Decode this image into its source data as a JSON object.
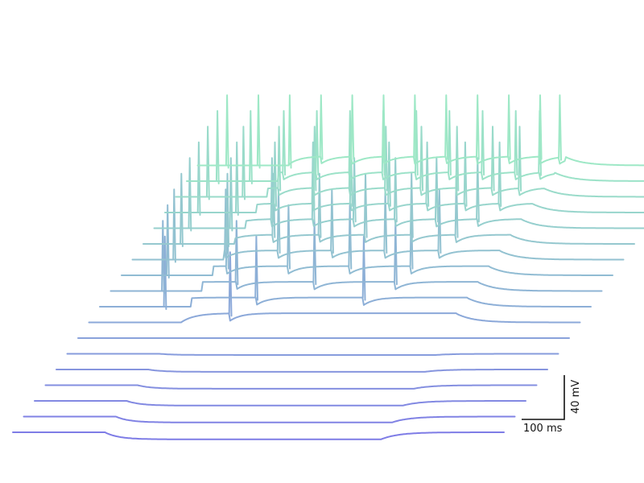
{
  "chart_data": {
    "type": "line",
    "title": "",
    "xlabel": "",
    "ylabel": "",
    "grid": false,
    "legend": "none",
    "colors": {
      "front": "#7e7ce6",
      "back": "#9ee8c6"
    },
    "scale_bar": {
      "time_label": "100 ms",
      "voltage_label": "40 mV"
    },
    "series": [
      {
        "step_mV": -60,
        "spikes_ms": []
      },
      {
        "step_mV": -50,
        "spikes_ms": []
      },
      {
        "step_mV": -40,
        "spikes_ms": []
      },
      {
        "step_mV": -30,
        "spikes_ms": []
      },
      {
        "step_mV": -20,
        "spikes_ms": []
      },
      {
        "step_mV": -10,
        "spikes_ms": []
      },
      {
        "step_mV": 0,
        "spikes_ms": []
      },
      {
        "step_mV": 10,
        "spikes_ms": [
          230
        ]
      },
      {
        "step_mV": 20,
        "spikes_ms": [
          106,
          255,
          430
        ]
      },
      {
        "step_mV": 30,
        "spikes_ms": [
          85,
          205,
          332,
          464
        ]
      },
      {
        "step_mV": 40,
        "spikes_ms": [
          75,
          172,
          272,
          372,
          472
        ]
      },
      {
        "step_mV": 50,
        "spikes_ms": [
          68,
          152,
          238,
          325,
          412,
          500
        ]
      },
      {
        "step_mV": 60,
        "spikes_ms": [
          62,
          137,
          212,
          287,
          362,
          437,
          510
        ]
      },
      {
        "step_mV": 70,
        "spikes_ms": [
          58,
          125,
          192,
          259,
          326,
          393,
          460,
          527
        ]
      },
      {
        "step_mV": 80,
        "spikes_ms": [
          55,
          117,
          179,
          241,
          303,
          365,
          427,
          489,
          545
        ]
      },
      {
        "step_mV": 90,
        "spikes_ms": [
          52,
          110,
          168,
          226,
          284,
          342,
          400,
          458,
          516,
          560
        ]
      },
      {
        "step_mV": 100,
        "spikes_ms": [
          50,
          104,
          158,
          212,
          266,
          320,
          374,
          428,
          482,
          536,
          575
        ]
      },
      {
        "step_mV": 110,
        "spikes_ms": [
          48,
          99,
          150,
          201,
          252,
          303,
          354,
          405,
          456,
          507,
          558,
          590
        ]
      }
    ]
  }
}
